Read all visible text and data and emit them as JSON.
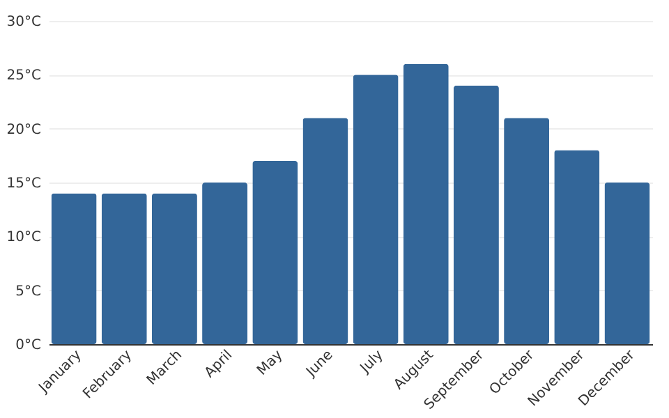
{
  "chart_data": {
    "type": "bar",
    "categories": [
      "January",
      "February",
      "March",
      "April",
      "May",
      "June",
      "July",
      "August",
      "September",
      "October",
      "November",
      "December"
    ],
    "values": [
      14,
      14,
      14,
      15,
      17,
      21,
      25,
      26,
      24,
      21,
      18,
      15
    ],
    "color": "#336699",
    "ylim": [
      0,
      30
    ],
    "yticks": [
      {
        "value": 0,
        "label": "0°C"
      },
      {
        "value": 5,
        "label": "5°C"
      },
      {
        "value": 10,
        "label": "10°C"
      },
      {
        "value": 15,
        "label": "15°C"
      },
      {
        "value": 20,
        "label": "20°C"
      },
      {
        "value": 25,
        "label": "25°C"
      },
      {
        "value": 30,
        "label": "30°C"
      }
    ],
    "grid": "y"
  }
}
